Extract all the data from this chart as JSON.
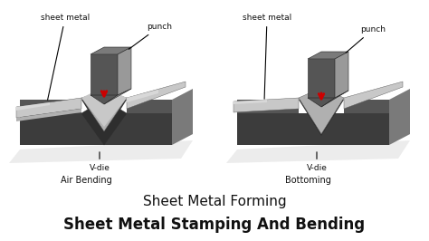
{
  "bg_color": "#ffffff",
  "title1": "Sheet Metal Forming",
  "title2": "Sheet Metal Stamping And Bending",
  "label_air": "Air Bending",
  "label_bottoming": "Bottoming",
  "label_vdie": "V-die",
  "label_punch": "punch",
  "label_sheet": "sheet metal",
  "c_darkest": "#2e2e2e",
  "c_dark": "#3c3c3c",
  "c_mid": "#555555",
  "c_light": "#7a7a7a",
  "c_lighter": "#999999",
  "c_silver": "#b0b0b0",
  "c_bright": "#c8c8c8",
  "c_shiny": "#d8d8d8",
  "c_red": "#cc0000",
  "c_text": "#111111",
  "c_shadow": "#e0e0e0"
}
